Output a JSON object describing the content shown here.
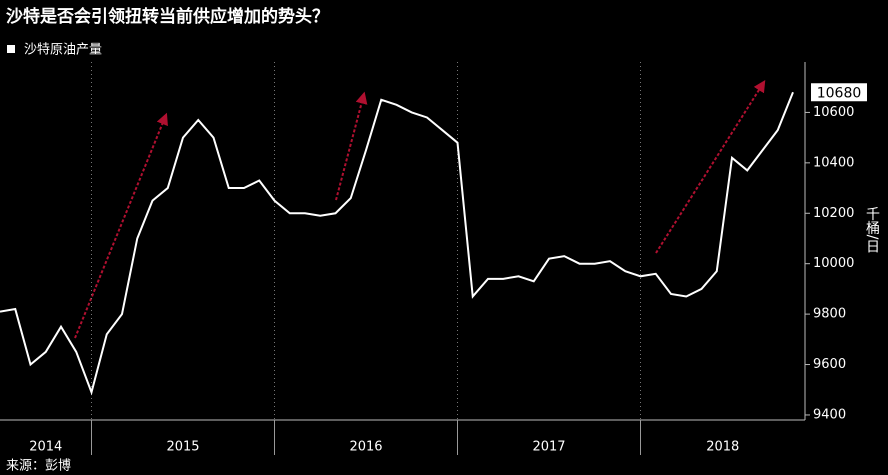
{
  "chart_data": {
    "type": "line",
    "title": "沙特是否会引领扭转当前供应增加的势头？",
    "y_axis_label": "千桶/日",
    "source": "来源：彭博",
    "year_labels": [
      "2014",
      "2015",
      "2016",
      "2017",
      "2018"
    ],
    "series": [
      {
        "name": "沙特原油产量",
        "color": "#ffffff",
        "values": [
          9810,
          9820,
          9600,
          9650,
          9750,
          9650,
          9490,
          9720,
          9800,
          10100,
          10250,
          10300,
          10500,
          10570,
          10500,
          10300,
          10300,
          10330,
          10250,
          10200,
          10200,
          10190,
          10200,
          10260,
          10450,
          10650,
          10630,
          10600,
          10580,
          10530,
          10480,
          9870,
          9940,
          9940,
          9950,
          9930,
          10020,
          10030,
          10000,
          10000,
          10010,
          9970,
          9950,
          9960,
          9880,
          9870,
          9900,
          9970,
          10420,
          10370,
          10450,
          10530,
          10680
        ]
      }
    ],
    "ylim": [
      9380,
      10800
    ],
    "yticks": [
      9400,
      9600,
      9800,
      10000,
      10200,
      10400,
      10600
    ],
    "grid": true
  }
}
